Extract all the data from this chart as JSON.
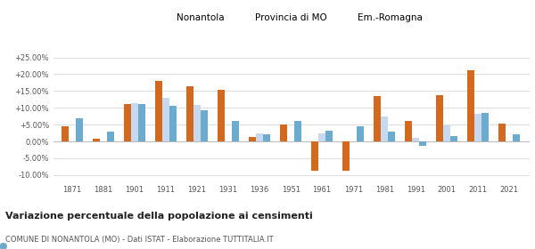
{
  "years": [
    1871,
    1881,
    1901,
    1911,
    1921,
    1931,
    1936,
    1951,
    1961,
    1971,
    1981,
    1991,
    2001,
    2011,
    2021
  ],
  "bar_nonantola": [
    4.5,
    0.8,
    11.0,
    18.0,
    16.5,
    15.3,
    1.4,
    5.0,
    -8.8,
    -8.7,
    13.5,
    6.2,
    13.8,
    21.2,
    5.4
  ],
  "bar_provincia": [
    null,
    null,
    11.5,
    13.0,
    10.8,
    null,
    2.3,
    null,
    2.5,
    null,
    7.5,
    1.2,
    4.8,
    8.2,
    null
  ],
  "bar_emilia": [
    7.0,
    2.8,
    11.2,
    10.5,
    9.4,
    6.2,
    2.2,
    6.1,
    3.2,
    4.5,
    3.0,
    -1.2,
    1.7,
    8.6,
    2.0
  ],
  "color_nonantola": "#d2691e",
  "color_provincia": "#c6d9f0",
  "color_emilia": "#6aabce",
  "title_main": "Variazione percentuale della popolazione ai censimenti",
  "title_sub": "COMUNE DI NONANTOLA (MO) - Dati ISTAT - Elaborazione TUTTITALIA.IT",
  "legend_labels": [
    "Nonantola",
    "Provincia di MO",
    "Em.-Romagna"
  ],
  "ylim": [
    -12,
    28
  ],
  "yticks": [
    -10.0,
    -5.0,
    0.0,
    5.0,
    10.0,
    15.0,
    20.0,
    25.0
  ],
  "background_color": "#ffffff",
  "grid_color": "#d0d0d0"
}
